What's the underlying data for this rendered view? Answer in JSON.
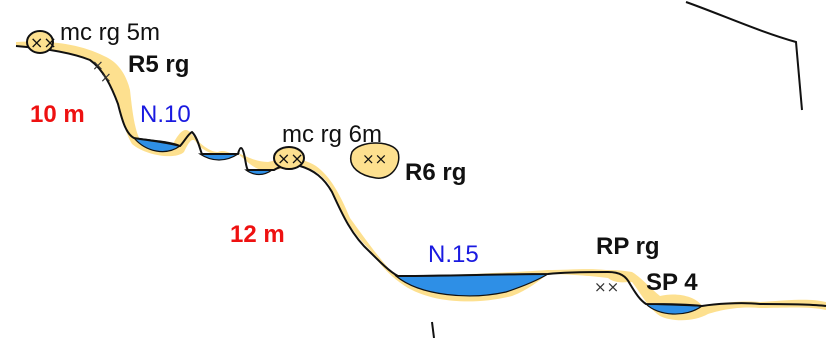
{
  "labels": {
    "boulder_top": "mc rg 5m",
    "r5": "R5 rg",
    "height_upper": "10 m",
    "level_upper": "N.10",
    "boulder_mid": "mc rg 6m",
    "r6": "R6 rg",
    "height_lower": "12 m",
    "level_lower": "N.15",
    "rp": "RP rg",
    "sp": "SP 4"
  },
  "colors": {
    "sediment": "#fde08f",
    "water": "#2e8fe6",
    "outline": "#111111",
    "height_text": "#ee1111",
    "level_text": "#1a1ae0"
  }
}
